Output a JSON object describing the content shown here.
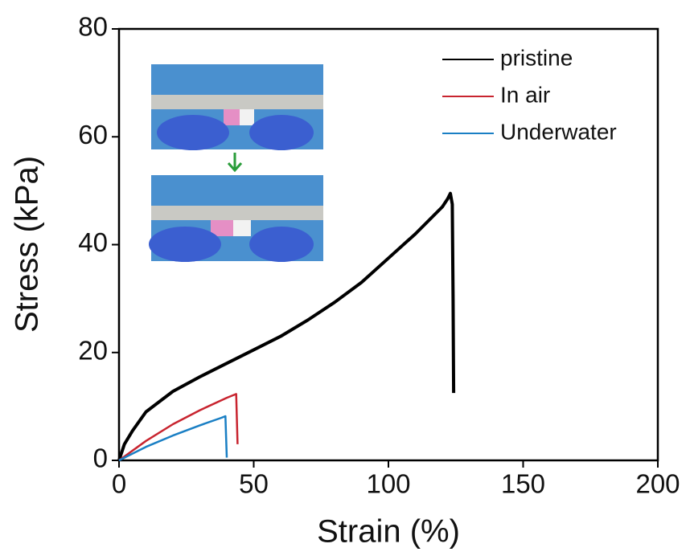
{
  "chart_data": {
    "type": "line",
    "x_label": "Strain (%)",
    "y_label": "Stress (kPa)",
    "xlim": [
      0,
      200
    ],
    "ylim": [
      0,
      80
    ],
    "xticks": [
      0,
      50,
      100,
      150,
      200
    ],
    "yticks": [
      0,
      20,
      40,
      60,
      80
    ],
    "legend": "upper right",
    "series": [
      {
        "name": "pristine",
        "color": "#000000",
        "x": [
          0,
          2,
          5,
          10,
          20,
          30,
          40,
          50,
          60,
          70,
          80,
          90,
          100,
          110,
          120,
          122,
          123,
          123.7,
          124,
          124.2
        ],
        "values": [
          0,
          3,
          5.5,
          9,
          12.8,
          15.5,
          18,
          20.5,
          23,
          26,
          29.3,
          33,
          37.5,
          42,
          47,
          48.5,
          49.5,
          47.5,
          30,
          12.5
        ]
      },
      {
        "name": "In air",
        "color": "#c8242f",
        "x": [
          0,
          10,
          20,
          30,
          40,
          43.5,
          44
        ],
        "values": [
          0,
          3.6,
          6.7,
          9.3,
          11.6,
          12.3,
          3
        ]
      },
      {
        "name": "Underwater",
        "color": "#1a7fc4",
        "x": [
          0,
          10,
          20,
          30,
          38,
          39.5,
          40
        ],
        "values": [
          0,
          2.5,
          4.6,
          6.5,
          7.9,
          8.2,
          0.5
        ]
      }
    ]
  }
}
